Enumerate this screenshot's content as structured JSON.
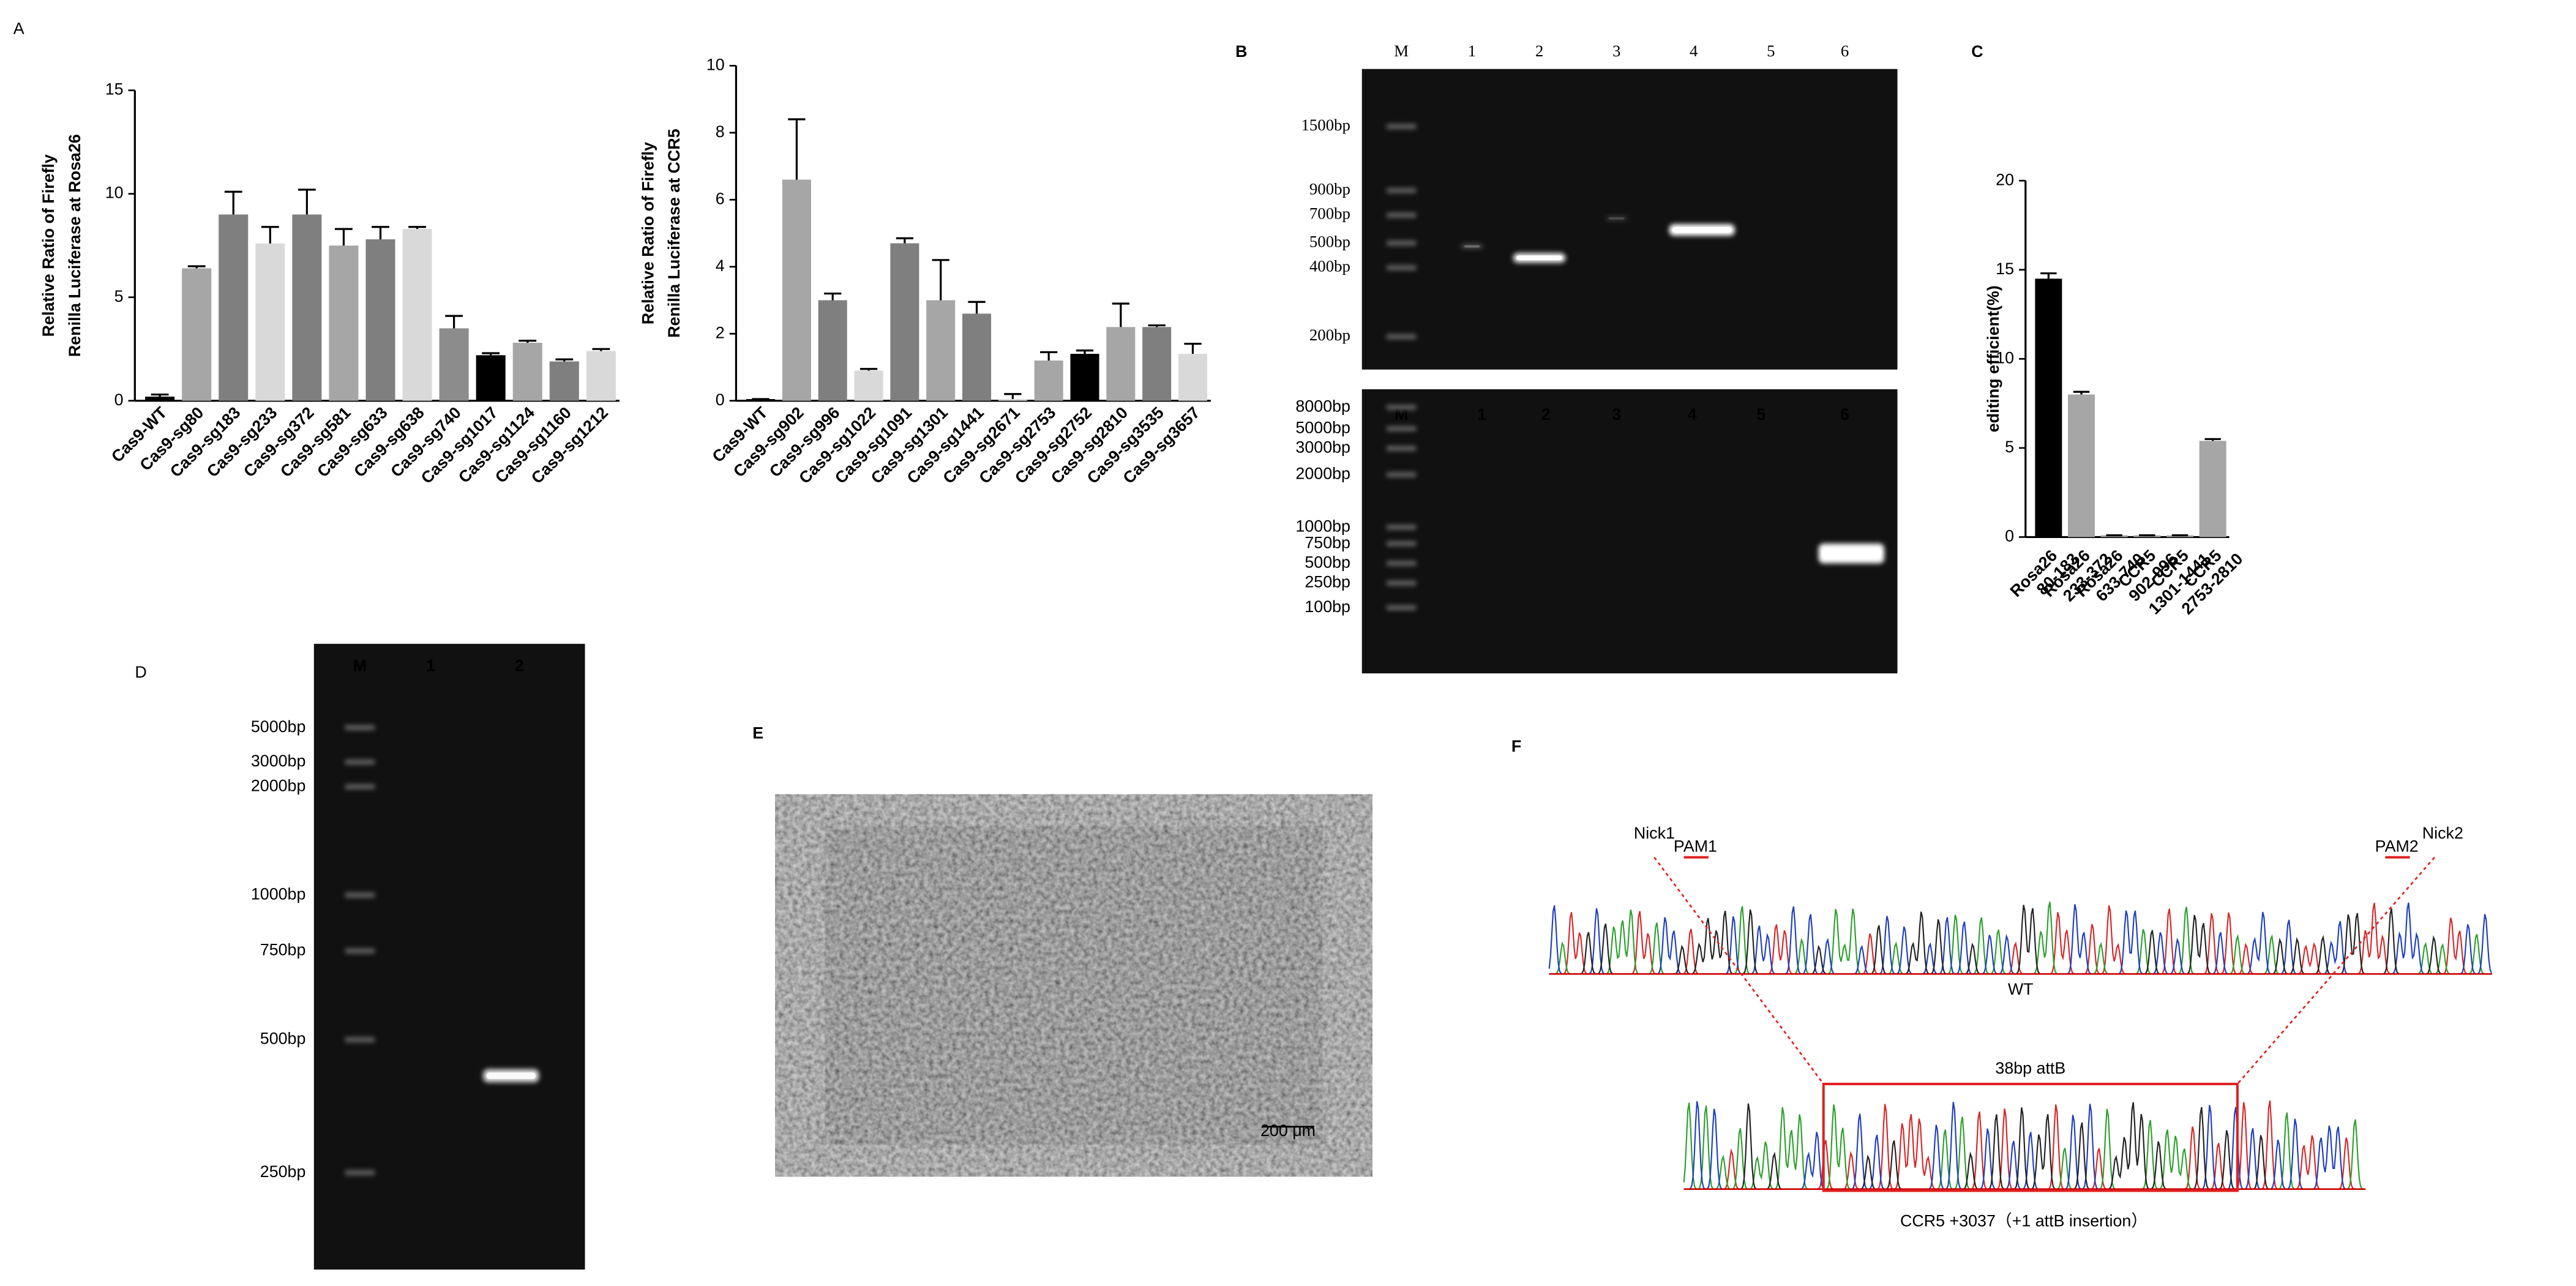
{
  "chart_data": [
    {
      "type": "bar",
      "panel": "A",
      "ylabel": [
        "Relative Ratio of Firefly",
        "Renilla Luciferase at Rosa26"
      ],
      "categories": [
        "Cas9-WT",
        "Cas9-sg80",
        "Cas9-sg183",
        "Cas9-sg233",
        "Cas9-sg372",
        "Cas9-sg581",
        "Cas9-sg633",
        "Cas9-sg638",
        "Cas9-sg740",
        "Cas9-sg1017",
        "Cas9-sg1124",
        "Cas9-sg1160",
        "Cas9-sg1212"
      ],
      "values": [
        0.2,
        6.4,
        9.0,
        7.6,
        9.0,
        7.5,
        7.8,
        8.3,
        3.5,
        2.2,
        2.8,
        1.9,
        2.4
      ],
      "errors": [
        0.1,
        0.1,
        1.1,
        0.8,
        1.2,
        0.8,
        0.6,
        0.1,
        0.6,
        0.1,
        0.1,
        0.1,
        0.1
      ],
      "colors": [
        "#000000",
        "#a6a6a6",
        "#7f7f7f",
        "#d9d9d9",
        "#7f7f7f",
        "#a6a6a6",
        "#7f7f7f",
        "#d9d9d9",
        "#8c8c8c",
        "#000000",
        "#a6a6a6",
        "#7f7f7f",
        "#d9d9d9"
      ],
      "ylim": [
        0,
        15
      ],
      "yticks": [
        0,
        5,
        10,
        15
      ]
    },
    {
      "type": "bar",
      "ylabel": [
        "Relative Ratio of Firefly",
        "Renilla Luciferase at CCR5"
      ],
      "categories": [
        "Cas9-WT",
        "Cas9-sg902",
        "Cas9-sg996",
        "Cas9-sg1022",
        "Cas9-sg1091",
        "Cas9-sg1301",
        "Cas9-sg1441",
        "Cas9-sg2671",
        "Cas9-sg2753",
        "Cas9-sg2752",
        "Cas9-sg2810",
        "Cas9-sg3535",
        "Cas9-sg3657"
      ],
      "values": [
        0.05,
        6.6,
        3.0,
        0.9,
        4.7,
        3.0,
        2.6,
        0.05,
        1.2,
        1.4,
        2.2,
        2.2,
        1.4
      ],
      "errors": [
        0,
        1.8,
        0.2,
        0.05,
        0.15,
        1.2,
        0.35,
        0.15,
        0.25,
        0.1,
        0.7,
        0.05,
        0.3
      ],
      "colors": [
        "#000000",
        "#a6a6a6",
        "#7f7f7f",
        "#d9d9d9",
        "#7f7f7f",
        "#a6a6a6",
        "#7f7f7f",
        "#d9d9d9",
        "#a6a6a6",
        "#000000",
        "#a6a6a6",
        "#7f7f7f",
        "#d9d9d9"
      ],
      "ylim": [
        0,
        10
      ],
      "yticks": [
        0,
        2,
        4,
        6,
        8,
        10
      ]
    },
    {
      "type": "bar",
      "panel": "C",
      "ylabel": [
        "editing efficient(%)"
      ],
      "categories": [
        [
          "Rosa26",
          "80-183"
        ],
        [
          "Rosa26",
          "233-372"
        ],
        [
          "Rosa26",
          "633-740"
        ],
        [
          "CCR5",
          "902-996"
        ],
        [
          "CCR5",
          "1301-1441"
        ],
        [
          "CCR5",
          "2753-2810"
        ]
      ],
      "values": [
        14.5,
        8.0,
        0.1,
        0.1,
        0.1,
        5.4
      ],
      "errors": [
        0.3,
        0.15,
        0,
        0,
        0,
        0.1
      ],
      "colors": [
        "#000000",
        "#a6a6a6",
        "#a6a6a6",
        "#a6a6a6",
        "#a6a6a6",
        "#a6a6a6"
      ],
      "ylim": [
        0,
        20
      ],
      "yticks": [
        0,
        5,
        10,
        15,
        20
      ]
    }
  ],
  "gels": [
    {
      "panel": "B",
      "lanes": [
        "M",
        "1",
        "2",
        "3",
        "4",
        "5",
        "6"
      ],
      "ladder": [
        "1500bp",
        "900bp",
        "700bp",
        "500bp",
        "400bp",
        "200bp"
      ]
    },
    {
      "lanes": [
        "M",
        "1",
        "2",
        "3",
        "4",
        "5",
        "6"
      ],
      "ladder": [
        "8000bp",
        "5000bp",
        "3000bp",
        "2000bp",
        "1000bp",
        "750bp",
        "500bp",
        "250bp",
        "100bp"
      ]
    },
    {
      "panel": "D",
      "lanes": [
        "M",
        "1",
        "2"
      ],
      "ladder": [
        "5000bp",
        "3000bp",
        "2000bp",
        "1000bp",
        "750bp",
        "500bp",
        "250bp"
      ]
    }
  ],
  "image": {
    "panel": "E",
    "scale": "200 μm"
  },
  "sequencing": {
    "panel": "F",
    "nick1": "Nick1",
    "pam1": "PAM1",
    "pam2": "PAM2",
    "nick2": "Nick2",
    "wt": "WT",
    "insert": "38bp attB",
    "caption": "CCR5 +3037（+1 attB insertion）"
  }
}
